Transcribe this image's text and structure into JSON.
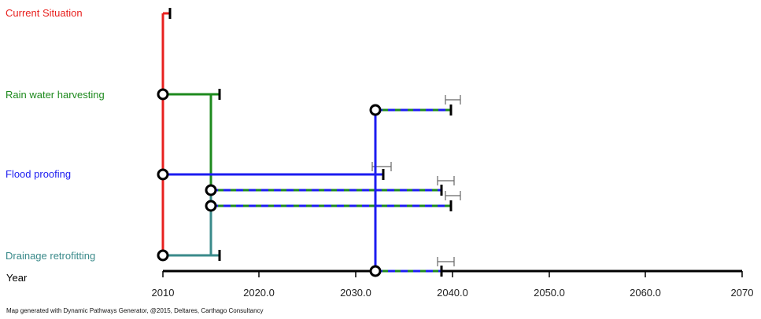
{
  "actions": [
    {
      "id": "current",
      "label": "Current Situation",
      "color": "#e8201e"
    },
    {
      "id": "rain",
      "label": "Rain water harvesting",
      "color": "#1e8a1e"
    },
    {
      "id": "flood",
      "label": "Flood proofing",
      "color": "#1c1cf0"
    },
    {
      "id": "drain",
      "label": "Drainage retrofitting",
      "color": "#3a8a8a"
    }
  ],
  "axis": {
    "title": "Year",
    "tick_labels": [
      "2010",
      "2020.0",
      "2030.0",
      "2040.0",
      "2050.0",
      "2060.0",
      "2070"
    ]
  },
  "footer": "Map generated with Dynamic Pathways Generator, @2015, Deltares, Carthago Consultancy"
}
